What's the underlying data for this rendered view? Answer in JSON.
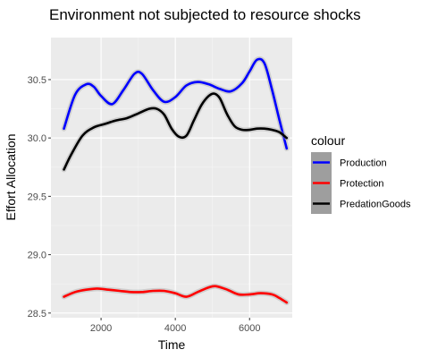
{
  "chart_data": {
    "type": "line",
    "title": "Environment not subjected to resource shocks",
    "xlabel": "Time",
    "ylabel": "Effort Allocation",
    "xlim": [
      650,
      7150
    ],
    "ylim": [
      28.46,
      30.86
    ],
    "xticks": [
      2000,
      4000,
      6000
    ],
    "xtick_labels": [
      "2000",
      "4000",
      "6000"
    ],
    "yticks": [
      28.5,
      29.0,
      29.5,
      30.0,
      30.5
    ],
    "ytick_labels": [
      "28.5",
      "29.0",
      "29.5",
      "30.0",
      "30.5"
    ],
    "grid": true,
    "legend": {
      "title": "colour",
      "position": "right"
    },
    "series": [
      {
        "name": "Production",
        "color": "#0000ff",
        "x": [
          1000,
          1300,
          1600,
          1800,
          2000,
          2300,
          2600,
          2900,
          3100,
          3400,
          3700,
          4000,
          4300,
          4600,
          4900,
          5200,
          5500,
          5800,
          6000,
          6200,
          6400,
          6600,
          6800,
          7000
        ],
        "y": [
          30.08,
          30.37,
          30.46,
          30.44,
          30.36,
          30.29,
          30.41,
          30.55,
          30.55,
          30.41,
          30.31,
          30.35,
          30.45,
          30.48,
          30.46,
          30.42,
          30.4,
          30.47,
          30.57,
          30.67,
          30.64,
          30.42,
          30.16,
          29.91
        ]
      },
      {
        "name": "Protection",
        "color": "#ff0000",
        "x": [
          1000,
          1300,
          1600,
          1900,
          2200,
          2500,
          2800,
          3100,
          3400,
          3700,
          4000,
          4300,
          4600,
          4900,
          5100,
          5400,
          5700,
          6000,
          6300,
          6600,
          6800,
          7000
        ],
        "y": [
          28.64,
          28.68,
          28.7,
          28.71,
          28.7,
          28.69,
          28.68,
          28.68,
          28.69,
          28.69,
          28.67,
          28.64,
          28.68,
          28.72,
          28.73,
          28.7,
          28.66,
          28.66,
          28.67,
          28.66,
          28.63,
          28.59
        ]
      },
      {
        "name": "PredationGoods",
        "color": "#000000",
        "x": [
          1000,
          1200,
          1500,
          1800,
          2100,
          2400,
          2700,
          3000,
          3300,
          3500,
          3700,
          3900,
          4100,
          4300,
          4500,
          4700,
          4900,
          5050,
          5200,
          5400,
          5600,
          5800,
          6000,
          6200,
          6400,
          6600,
          6800,
          7000
        ],
        "y": [
          29.73,
          29.86,
          30.02,
          30.09,
          30.12,
          30.15,
          30.17,
          30.21,
          30.25,
          30.25,
          30.2,
          30.08,
          30.01,
          30.02,
          30.15,
          30.28,
          30.36,
          30.38,
          30.34,
          30.2,
          30.1,
          30.07,
          30.07,
          30.08,
          30.08,
          30.07,
          30.05,
          30.0
        ]
      }
    ]
  }
}
